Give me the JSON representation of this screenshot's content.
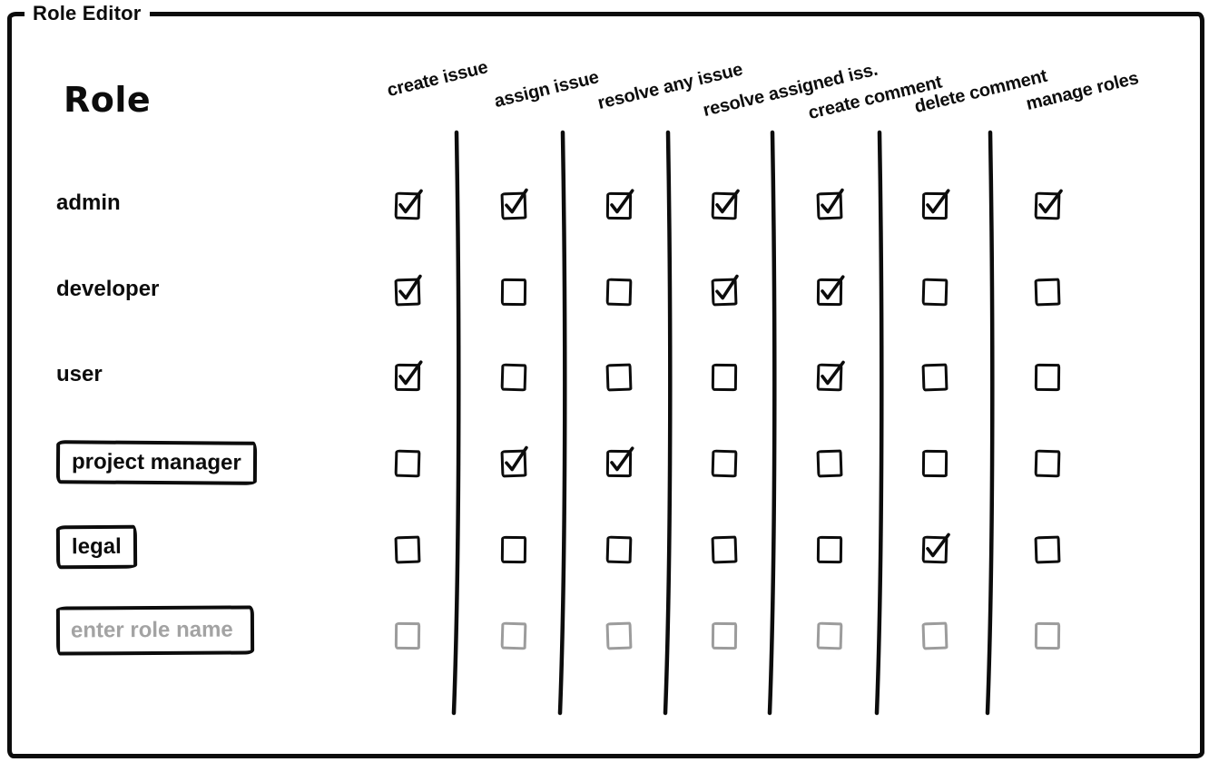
{
  "window": {
    "legend": "Role Editor"
  },
  "matrix": {
    "role_column_header": "Role",
    "permission_columns": [
      "create issue",
      "assign issue",
      "resolve any issue",
      "resolve assigned iss.",
      "create comment",
      "delete comment",
      "manage roles"
    ],
    "roles": [
      {
        "name": "admin",
        "kind": "text",
        "disabled": false,
        "permissions": [
          true,
          true,
          true,
          true,
          true,
          true,
          true
        ]
      },
      {
        "name": "developer",
        "kind": "text",
        "disabled": false,
        "permissions": [
          true,
          false,
          false,
          true,
          true,
          false,
          false
        ]
      },
      {
        "name": "user",
        "kind": "text",
        "disabled": false,
        "permissions": [
          true,
          false,
          false,
          false,
          true,
          false,
          false
        ]
      },
      {
        "name": "project manager",
        "kind": "boxed",
        "disabled": false,
        "permissions": [
          false,
          true,
          true,
          false,
          false,
          false,
          false
        ]
      },
      {
        "name": "legal",
        "kind": "boxed",
        "disabled": false,
        "permissions": [
          false,
          false,
          false,
          false,
          false,
          true,
          false
        ]
      },
      {
        "name": "",
        "placeholder": "enter role name",
        "kind": "input",
        "disabled": true,
        "permissions": [
          false,
          false,
          false,
          false,
          false,
          false,
          false
        ]
      }
    ]
  },
  "colors": {
    "ink": "#0c0c0c",
    "placeholder_text": "#a3a3a3",
    "disabled_checkbox": "#9c9c9c",
    "background": "#ffffff"
  }
}
